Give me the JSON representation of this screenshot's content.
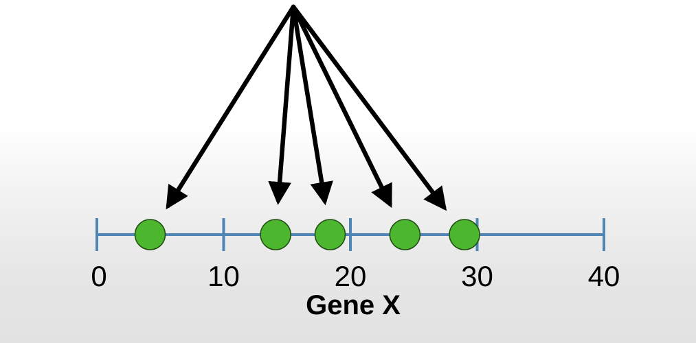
{
  "chart_data": {
    "type": "scatter",
    "title": "",
    "xlabel": "Gene X",
    "ylabel": "",
    "xlim": [
      0,
      40
    ],
    "xticks": [
      "0",
      "10",
      "20",
      "30",
      "40"
    ],
    "x": [
      4.2,
      14.1,
      18.4,
      24.3,
      29.0
    ],
    "grid": false,
    "colors": {
      "axis": "#4f86b5",
      "point_fill": "#4cb62f",
      "point_stroke": "#1f4d12",
      "arrow": "#000000"
    }
  }
}
